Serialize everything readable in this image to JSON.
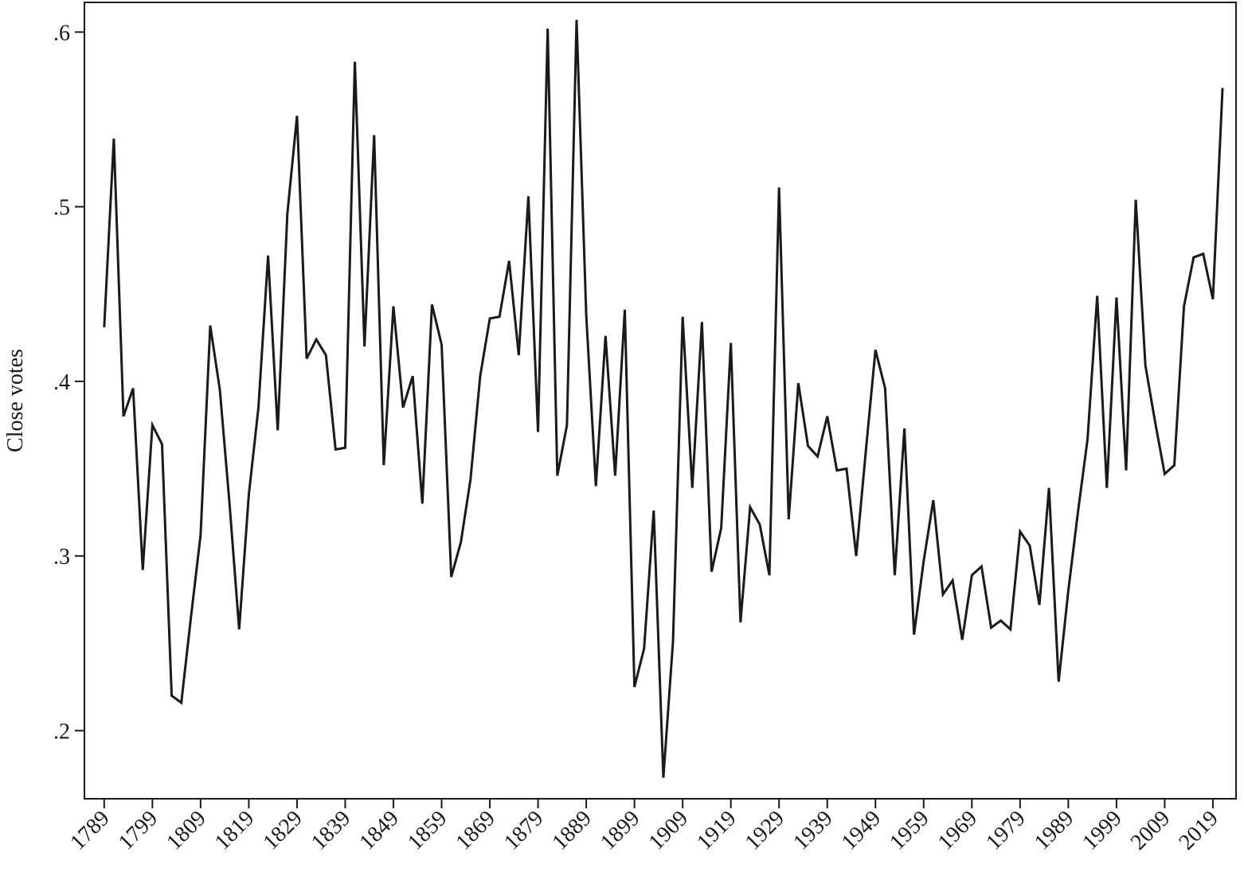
{
  "chart_data": {
    "type": "line",
    "y_label": "Close votes",
    "x": [
      1789,
      1791,
      1793,
      1795,
      1797,
      1799,
      1801,
      1803,
      1805,
      1807,
      1809,
      1811,
      1813,
      1815,
      1817,
      1819,
      1821,
      1823,
      1825,
      1827,
      1829,
      1831,
      1833,
      1835,
      1837,
      1839,
      1841,
      1843,
      1845,
      1847,
      1849,
      1851,
      1853,
      1855,
      1857,
      1859,
      1861,
      1863,
      1865,
      1867,
      1869,
      1871,
      1873,
      1875,
      1877,
      1879,
      1881,
      1883,
      1885,
      1887,
      1889,
      1891,
      1893,
      1895,
      1897,
      1899,
      1901,
      1903,
      1905,
      1907,
      1909,
      1911,
      1913,
      1915,
      1917,
      1919,
      1921,
      1923,
      1925,
      1927,
      1929,
      1931,
      1933,
      1935,
      1937,
      1939,
      1941,
      1943,
      1945,
      1947,
      1949,
      1951,
      1953,
      1955,
      1957,
      1959,
      1961,
      1963,
      1965,
      1967,
      1969,
      1971,
      1973,
      1975,
      1977,
      1979,
      1981,
      1983,
      1985,
      1987,
      1989,
      1991,
      1993,
      1995,
      1997,
      1999,
      2001,
      2003,
      2005,
      2007,
      2009,
      2011,
      2013,
      2015,
      2017,
      2019,
      2021
    ],
    "values": [
      0.431,
      0.539,
      0.38,
      0.396,
      0.292,
      0.375,
      0.364,
      0.22,
      0.216,
      0.265,
      0.312,
      0.432,
      0.395,
      0.33,
      0.258,
      0.335,
      0.385,
      0.472,
      0.372,
      0.496,
      0.552,
      0.413,
      0.424,
      0.415,
      0.361,
      0.362,
      0.583,
      0.42,
      0.541,
      0.352,
      0.443,
      0.385,
      0.403,
      0.33,
      0.444,
      0.421,
      0.288,
      0.308,
      0.344,
      0.403,
      0.436,
      0.437,
      0.469,
      0.415,
      0.506,
      0.371,
      0.602,
      0.346,
      0.375,
      0.607,
      0.438,
      0.34,
      0.426,
      0.346,
      0.441,
      0.225,
      0.247,
      0.326,
      0.173,
      0.251,
      0.437,
      0.339,
      0.434,
      0.291,
      0.316,
      0.422,
      0.262,
      0.328,
      0.318,
      0.289,
      0.511,
      0.321,
      0.399,
      0.363,
      0.357,
      0.38,
      0.349,
      0.35,
      0.3,
      0.36,
      0.418,
      0.396,
      0.289,
      0.373,
      0.255,
      0.297,
      0.332,
      0.278,
      0.286,
      0.252,
      0.289,
      0.294,
      0.259,
      0.263,
      0.258,
      0.314,
      0.306,
      0.272,
      0.339,
      0.228,
      0.28,
      0.325,
      0.367,
      0.449,
      0.339,
      0.448,
      0.349,
      0.504,
      0.409,
      0.377,
      0.347,
      0.352,
      0.443,
      0.471,
      0.473,
      0.447,
      0.568
    ],
    "color": "#1a1a1a",
    "xlim": [
      1784.9,
      2023.8
    ],
    "xticks": [
      1789,
      1799,
      1809,
      1819,
      1829,
      1839,
      1849,
      1859,
      1869,
      1879,
      1889,
      1899,
      1909,
      1919,
      1929,
      1939,
      1949,
      1959,
      1969,
      1979,
      1989,
      1999,
      2009,
      2019
    ],
    "ylim": [
      0.161,
      0.617
    ],
    "yticks": [
      {
        "value": 0.2,
        "label": ".2"
      },
      {
        "value": 0.3,
        "label": ".3"
      },
      {
        "value": 0.4,
        "label": ".4"
      },
      {
        "value": 0.5,
        "label": ".5"
      },
      {
        "value": 0.6,
        "label": ".6"
      }
    ]
  }
}
